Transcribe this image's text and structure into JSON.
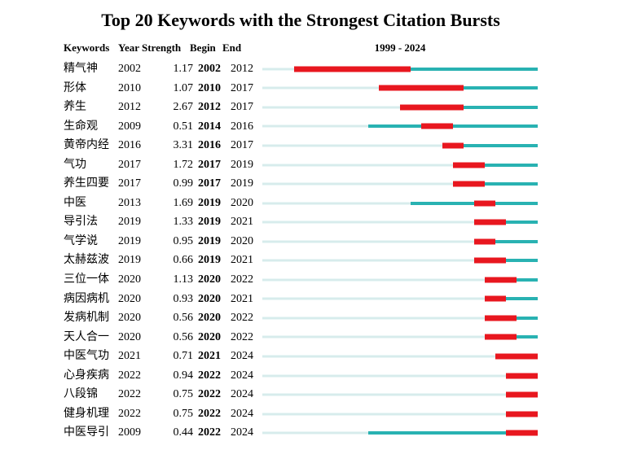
{
  "title": "Top 20 Keywords with the Strongest Citation Bursts",
  "columns": {
    "keywords": "Keywords",
    "year": "Year",
    "strength": "Strength",
    "begin": "Begin",
    "end": "End",
    "timeline_range": "1999 - 2024"
  },
  "colors": {
    "burst": "#e8171f",
    "active": "#29b2b2",
    "inactive": "#d7ecec"
  },
  "chart_data": {
    "type": "table",
    "title": "Top 20 Keywords with the Strongest Citation Bursts",
    "columns": [
      "Keywords",
      "Year",
      "Strength",
      "Begin",
      "End",
      "1999 - 2024"
    ],
    "timeline": {
      "min": 1999,
      "max": 2024
    },
    "legend": {
      "burst_segment": "red bar from Begin to End year",
      "active_segment": "teal line from first appearance Year to 2024",
      "inactive_segment": "pale teal line from 1999 to first appearance Year"
    },
    "rows": [
      {
        "keyword": "精气神",
        "year": 2002,
        "strength": "1.17",
        "begin": 2002,
        "end": 2012
      },
      {
        "keyword": "形体",
        "year": 2010,
        "strength": "1.07",
        "begin": 2010,
        "end": 2017
      },
      {
        "keyword": "养生",
        "year": 2012,
        "strength": "2.67",
        "begin": 2012,
        "end": 2017
      },
      {
        "keyword": "生命观",
        "year": 2009,
        "strength": "0.51",
        "begin": 2014,
        "end": 2016
      },
      {
        "keyword": "黄帝内经",
        "year": 2016,
        "strength": "3.31",
        "begin": 2016,
        "end": 2017
      },
      {
        "keyword": "气功",
        "year": 2017,
        "strength": "1.72",
        "begin": 2017,
        "end": 2019
      },
      {
        "keyword": "养生四要",
        "year": 2017,
        "strength": "0.99",
        "begin": 2017,
        "end": 2019
      },
      {
        "keyword": "中医",
        "year": 2013,
        "strength": "1.69",
        "begin": 2019,
        "end": 2020
      },
      {
        "keyword": "导引法",
        "year": 2019,
        "strength": "1.33",
        "begin": 2019,
        "end": 2021
      },
      {
        "keyword": "气学说",
        "year": 2019,
        "strength": "0.95",
        "begin": 2019,
        "end": 2020
      },
      {
        "keyword": "太赫兹波",
        "year": 2019,
        "strength": "0.66",
        "begin": 2019,
        "end": 2021
      },
      {
        "keyword": "三位一体",
        "year": 2020,
        "strength": "1.13",
        "begin": 2020,
        "end": 2022
      },
      {
        "keyword": "病因病机",
        "year": 2020,
        "strength": "0.93",
        "begin": 2020,
        "end": 2021
      },
      {
        "keyword": "发病机制",
        "year": 2020,
        "strength": "0.56",
        "begin": 2020,
        "end": 2022
      },
      {
        "keyword": "天人合一",
        "year": 2020,
        "strength": "0.56",
        "begin": 2020,
        "end": 2022
      },
      {
        "keyword": "中医气功",
        "year": 2021,
        "strength": "0.71",
        "begin": 2021,
        "end": 2024
      },
      {
        "keyword": "心身疾病",
        "year": 2022,
        "strength": "0.94",
        "begin": 2022,
        "end": 2024
      },
      {
        "keyword": "八段锦",
        "year": 2022,
        "strength": "0.75",
        "begin": 2022,
        "end": 2024
      },
      {
        "keyword": "健身机理",
        "year": 2022,
        "strength": "0.75",
        "begin": 2022,
        "end": 2024
      },
      {
        "keyword": "中医导引",
        "year": 2009,
        "strength": "0.44",
        "begin": 2022,
        "end": 2024
      }
    ]
  }
}
